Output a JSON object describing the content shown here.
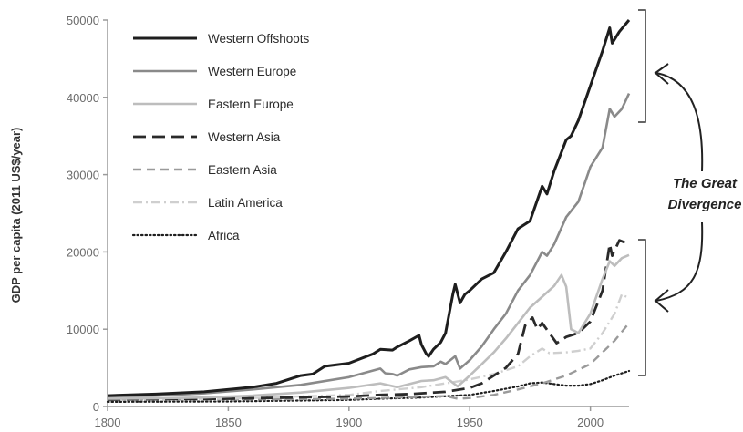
{
  "chart_data": {
    "type": "line",
    "title": "",
    "xlabel": "",
    "ylabel": "GDP per capita (2011 US$/year)",
    "xlim": [
      1800,
      2016
    ],
    "ylim": [
      0,
      50000
    ],
    "x_ticks": [
      "1800",
      "1850",
      "1900",
      "1950",
      "2000"
    ],
    "y_ticks": [
      "0",
      "10000",
      "20000",
      "30000",
      "40000",
      "50000"
    ],
    "grid": false,
    "legend_position": "top-left",
    "annotation": [
      "The Great",
      "Divergence"
    ],
    "series": [
      {
        "name": "Western Offshoots",
        "color": "#1e1e1e",
        "style": "solid",
        "points": [
          [
            1800,
            1400
          ],
          [
            1820,
            1600
          ],
          [
            1840,
            1900
          ],
          [
            1860,
            2500
          ],
          [
            1870,
            3000
          ],
          [
            1880,
            4000
          ],
          [
            1885,
            4200
          ],
          [
            1890,
            5200
          ],
          [
            1900,
            5600
          ],
          [
            1905,
            6200
          ],
          [
            1910,
            6800
          ],
          [
            1913,
            7400
          ],
          [
            1918,
            7300
          ],
          [
            1920,
            7700
          ],
          [
            1925,
            8500
          ],
          [
            1929,
            9200
          ],
          [
            1930,
            8000
          ],
          [
            1932,
            6800
          ],
          [
            1933,
            6500
          ],
          [
            1935,
            7400
          ],
          [
            1938,
            8300
          ],
          [
            1940,
            9500
          ],
          [
            1943,
            14500
          ],
          [
            1944,
            15800
          ],
          [
            1946,
            13400
          ],
          [
            1948,
            14500
          ],
          [
            1950,
            15000
          ],
          [
            1955,
            16500
          ],
          [
            1960,
            17300
          ],
          [
            1965,
            20000
          ],
          [
            1970,
            23000
          ],
          [
            1975,
            24000
          ],
          [
            1980,
            28500
          ],
          [
            1982,
            27500
          ],
          [
            1985,
            30500
          ],
          [
            1990,
            34500
          ],
          [
            1992,
            35000
          ],
          [
            1995,
            37000
          ],
          [
            2000,
            41500
          ],
          [
            2005,
            46000
          ],
          [
            2008,
            49000
          ],
          [
            2009,
            47000
          ],
          [
            2012,
            48500
          ],
          [
            2016,
            50000
          ]
        ]
      },
      {
        "name": "Western Europe",
        "color": "#8a8a8a",
        "style": "solid",
        "points": [
          [
            1800,
            1300
          ],
          [
            1820,
            1400
          ],
          [
            1840,
            1700
          ],
          [
            1860,
            2200
          ],
          [
            1880,
            2800
          ],
          [
            1900,
            3800
          ],
          [
            1913,
            4900
          ],
          [
            1915,
            4300
          ],
          [
            1918,
            4200
          ],
          [
            1920,
            4000
          ],
          [
            1925,
            4800
          ],
          [
            1930,
            5100
          ],
          [
            1935,
            5200
          ],
          [
            1938,
            5800
          ],
          [
            1940,
            5500
          ],
          [
            1944,
            6500
          ],
          [
            1946,
            4900
          ],
          [
            1950,
            6000
          ],
          [
            1955,
            7800
          ],
          [
            1960,
            10000
          ],
          [
            1965,
            12000
          ],
          [
            1970,
            15000
          ],
          [
            1975,
            17000
          ],
          [
            1980,
            20000
          ],
          [
            1982,
            19500
          ],
          [
            1985,
            21000
          ],
          [
            1990,
            24500
          ],
          [
            1995,
            26500
          ],
          [
            2000,
            31000
          ],
          [
            2005,
            33500
          ],
          [
            2008,
            38500
          ],
          [
            2010,
            37500
          ],
          [
            2013,
            38500
          ],
          [
            2016,
            40500
          ]
        ]
      },
      {
        "name": "Eastern Europe",
        "color": "#bdbdbd",
        "style": "solid",
        "points": [
          [
            1800,
            1000
          ],
          [
            1820,
            1050
          ],
          [
            1840,
            1150
          ],
          [
            1860,
            1400
          ],
          [
            1880,
            1800
          ],
          [
            1900,
            2400
          ],
          [
            1913,
            3000
          ],
          [
            1920,
            2500
          ],
          [
            1925,
            2900
          ],
          [
            1930,
            3300
          ],
          [
            1935,
            3400
          ],
          [
            1940,
            3800
          ],
          [
            1945,
            2600
          ],
          [
            1950,
            4000
          ],
          [
            1955,
            5500
          ],
          [
            1960,
            7000
          ],
          [
            1965,
            8800
          ],
          [
            1970,
            10800
          ],
          [
            1975,
            12800
          ],
          [
            1980,
            14200
          ],
          [
            1985,
            15600
          ],
          [
            1988,
            17000
          ],
          [
            1990,
            15500
          ],
          [
            1992,
            10000
          ],
          [
            1995,
            9500
          ],
          [
            1998,
            11000
          ],
          [
            2000,
            12000
          ],
          [
            2005,
            16500
          ],
          [
            2008,
            18800
          ],
          [
            2010,
            18200
          ],
          [
            2013,
            19200
          ],
          [
            2016,
            19600
          ]
        ]
      },
      {
        "name": "Western Asia",
        "color": "#2a2a2a",
        "style": "longdash",
        "points": [
          [
            1800,
            900
          ],
          [
            1850,
            1000
          ],
          [
            1900,
            1300
          ],
          [
            1913,
            1500
          ],
          [
            1925,
            1600
          ],
          [
            1940,
            1900
          ],
          [
            1950,
            2400
          ],
          [
            1955,
            3000
          ],
          [
            1960,
            4000
          ],
          [
            1965,
            5000
          ],
          [
            1970,
            6800
          ],
          [
            1973,
            10500
          ],
          [
            1976,
            11500
          ],
          [
            1978,
            10000
          ],
          [
            1980,
            10800
          ],
          [
            1983,
            9500
          ],
          [
            1986,
            8200
          ],
          [
            1990,
            9000
          ],
          [
            1995,
            9500
          ],
          [
            2000,
            11000
          ],
          [
            2005,
            15000
          ],
          [
            2008,
            21000
          ],
          [
            2009,
            19500
          ],
          [
            2012,
            21500
          ],
          [
            2016,
            21000
          ]
        ]
      },
      {
        "name": "Eastern Asia",
        "color": "#9a9a9a",
        "style": "dash",
        "points": [
          [
            1800,
            900
          ],
          [
            1850,
            900
          ],
          [
            1900,
            1000
          ],
          [
            1913,
            1100
          ],
          [
            1930,
            1250
          ],
          [
            1940,
            1350
          ],
          [
            1945,
            1000
          ],
          [
            1950,
            1100
          ],
          [
            1960,
            1500
          ],
          [
            1970,
            2200
          ],
          [
            1980,
            3000
          ],
          [
            1990,
            4000
          ],
          [
            2000,
            5500
          ],
          [
            2005,
            7000
          ],
          [
            2010,
            8500
          ],
          [
            2016,
            10800
          ]
        ]
      },
      {
        "name": "Latin America",
        "color": "#cfcfcf",
        "style": "dashdot",
        "points": [
          [
            1800,
            900
          ],
          [
            1850,
            1000
          ],
          [
            1900,
            1500
          ],
          [
            1913,
            2000
          ],
          [
            1930,
            2500
          ],
          [
            1940,
            3000
          ],
          [
            1950,
            3500
          ],
          [
            1960,
            4200
          ],
          [
            1970,
            5200
          ],
          [
            1975,
            6500
          ],
          [
            1980,
            7500
          ],
          [
            1983,
            6900
          ],
          [
            1990,
            7000
          ],
          [
            1995,
            7200
          ],
          [
            2000,
            7500
          ],
          [
            2005,
            9500
          ],
          [
            2010,
            12000
          ],
          [
            2013,
            14500
          ],
          [
            2016,
            14000
          ]
        ]
      },
      {
        "name": "Africa",
        "color": "#1e1e1e",
        "style": "dotted",
        "points": [
          [
            1800,
            600
          ],
          [
            1850,
            650
          ],
          [
            1900,
            850
          ],
          [
            1913,
            1000
          ],
          [
            1930,
            1150
          ],
          [
            1950,
            1500
          ],
          [
            1960,
            2000
          ],
          [
            1970,
            2600
          ],
          [
            1975,
            3000
          ],
          [
            1980,
            3100
          ],
          [
            1985,
            2900
          ],
          [
            1990,
            2700
          ],
          [
            1995,
            2700
          ],
          [
            2000,
            2900
          ],
          [
            2005,
            3400
          ],
          [
            2010,
            4000
          ],
          [
            2016,
            4600
          ]
        ]
      }
    ]
  }
}
